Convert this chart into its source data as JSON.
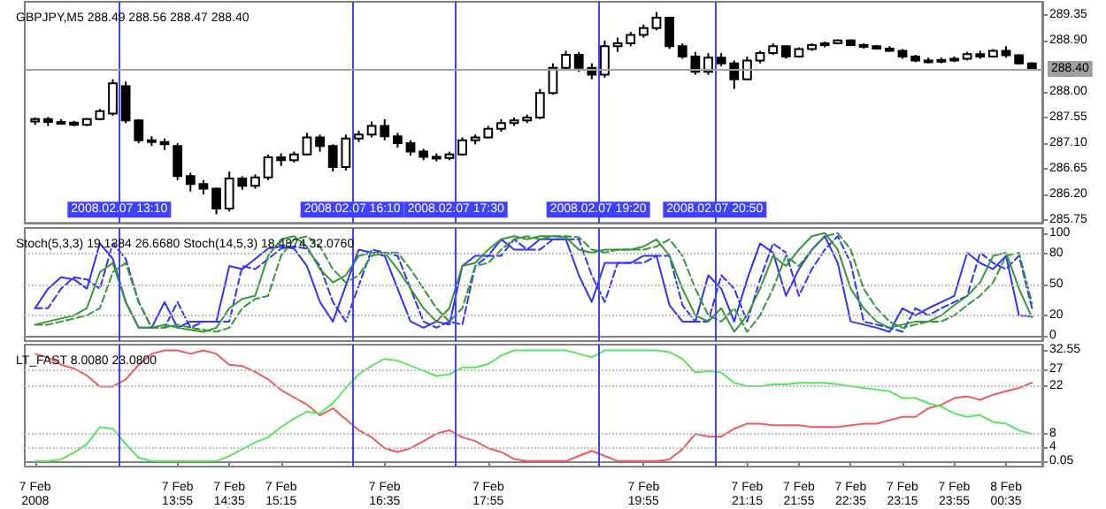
{
  "chart_data": [
    {
      "type": "candlestick",
      "title": "GBPJPY,M5 288.49 288.56 288.47 288.40",
      "color": "#000000",
      "x": [
        "2008-02-07T12:05",
        "2008-02-07T12:15",
        "2008-02-07T12:25",
        "2008-02-07T12:35",
        "2008-02-07T12:45",
        "2008-02-07T12:55",
        "2008-02-07T13:05",
        "2008-02-07T13:15",
        "2008-02-07T13:25",
        "2008-02-07T13:35",
        "2008-02-07T13:45",
        "2008-02-07T13:55",
        "2008-02-07T14:05",
        "2008-02-07T14:15",
        "2008-02-07T14:25",
        "2008-02-07T14:35",
        "2008-02-07T14:45",
        "2008-02-07T14:55",
        "2008-02-07T15:05",
        "2008-02-07T15:15",
        "2008-02-07T15:25",
        "2008-02-07T15:35",
        "2008-02-07T15:45",
        "2008-02-07T15:55",
        "2008-02-07T16:05",
        "2008-02-07T16:15",
        "2008-02-07T16:25",
        "2008-02-07T16:35",
        "2008-02-07T16:45",
        "2008-02-07T16:55",
        "2008-02-07T17:05",
        "2008-02-07T17:15",
        "2008-02-07T17:25",
        "2008-02-07T17:35",
        "2008-02-07T17:45",
        "2008-02-07T17:55",
        "2008-02-07T18:05",
        "2008-02-07T18:15",
        "2008-02-07T18:25",
        "2008-02-07T18:35",
        "2008-02-07T18:45",
        "2008-02-07T18:55",
        "2008-02-07T19:05",
        "2008-02-07T19:15",
        "2008-02-07T19:25",
        "2008-02-07T19:35",
        "2008-02-07T19:45",
        "2008-02-07T19:55",
        "2008-02-07T20:05",
        "2008-02-07T20:15",
        "2008-02-07T20:25",
        "2008-02-07T20:35",
        "2008-02-07T20:45",
        "2008-02-07T20:55",
        "2008-02-07T21:05",
        "2008-02-07T21:15",
        "2008-02-07T21:25",
        "2008-02-07T21:35",
        "2008-02-07T21:45",
        "2008-02-07T21:55",
        "2008-02-07T22:05",
        "2008-02-07T22:15",
        "2008-02-07T22:25",
        "2008-02-07T22:35",
        "2008-02-07T22:45",
        "2008-02-07T22:55",
        "2008-02-07T23:05",
        "2008-02-07T23:15",
        "2008-02-07T23:25",
        "2008-02-07T23:35",
        "2008-02-07T23:45",
        "2008-02-07T23:55",
        "2008-02-08T00:05",
        "2008-02-08T00:15",
        "2008-02-08T00:25",
        "2008-02-08T00:35",
        "2008-02-08T00:45",
        "2008-02-08T00:55"
      ],
      "ohlc": [
        [
          287.48,
          287.55,
          287.42,
          287.52
        ],
        [
          287.52,
          287.56,
          287.4,
          287.47
        ],
        [
          287.47,
          287.52,
          287.43,
          287.46
        ],
        [
          287.46,
          287.49,
          287.4,
          287.42
        ],
        [
          287.42,
          287.54,
          287.4,
          287.52
        ],
        [
          287.52,
          287.7,
          287.5,
          287.66
        ],
        [
          287.62,
          288.22,
          287.58,
          288.15
        ],
        [
          288.1,
          288.18,
          287.45,
          287.5
        ],
        [
          287.5,
          287.52,
          287.1,
          287.15
        ],
        [
          287.15,
          287.22,
          287.05,
          287.12
        ],
        [
          287.12,
          287.18,
          286.98,
          287.08
        ],
        [
          287.05,
          287.1,
          286.45,
          286.52
        ],
        [
          286.52,
          286.58,
          286.25,
          286.38
        ],
        [
          286.38,
          286.45,
          286.2,
          286.3
        ],
        [
          286.3,
          286.32,
          285.85,
          285.95
        ],
        [
          285.95,
          286.6,
          285.9,
          286.48
        ],
        [
          286.48,
          286.52,
          286.28,
          286.35
        ],
        [
          286.35,
          286.55,
          286.3,
          286.5
        ],
        [
          286.5,
          286.9,
          286.45,
          286.85
        ],
        [
          286.85,
          286.92,
          286.7,
          286.8
        ],
        [
          286.8,
          286.95,
          286.76,
          286.9
        ],
        [
          286.9,
          287.28,
          286.88,
          287.2
        ],
        [
          287.2,
          287.25,
          286.95,
          287.05
        ],
        [
          287.05,
          287.08,
          286.6,
          286.68
        ],
        [
          286.68,
          287.25,
          286.62,
          287.18
        ],
        [
          287.18,
          287.32,
          287.12,
          287.25
        ],
        [
          287.25,
          287.48,
          287.2,
          287.4
        ],
        [
          287.4,
          287.52,
          287.15,
          287.22
        ],
        [
          287.22,
          287.28,
          287.02,
          287.1
        ],
        [
          287.1,
          287.15,
          286.88,
          286.95
        ],
        [
          286.95,
          287,
          286.8,
          286.86
        ],
        [
          286.86,
          286.92,
          286.78,
          286.84
        ],
        [
          286.84,
          286.95,
          286.8,
          286.9
        ],
        [
          286.9,
          287.2,
          286.88,
          287.15
        ],
        [
          287.15,
          287.25,
          287.08,
          287.2
        ],
        [
          287.2,
          287.4,
          287.18,
          287.35
        ],
        [
          287.35,
          287.52,
          287.3,
          287.45
        ],
        [
          287.45,
          287.55,
          287.4,
          287.5
        ],
        [
          287.5,
          287.6,
          287.45,
          287.55
        ],
        [
          287.55,
          288.05,
          287.52,
          287.98
        ],
        [
          287.98,
          288.5,
          287.95,
          288.42
        ],
        [
          288.42,
          288.72,
          288.38,
          288.65
        ],
        [
          288.65,
          288.7,
          288.35,
          288.42
        ],
        [
          288.42,
          288.5,
          288.22,
          288.3
        ],
        [
          288.3,
          288.9,
          288.25,
          288.8
        ],
        [
          288.8,
          288.95,
          288.7,
          288.85
        ],
        [
          288.85,
          289.05,
          288.8,
          289
        ],
        [
          289,
          289.18,
          288.95,
          289.12
        ],
        [
          289.12,
          289.4,
          289.08,
          289.3
        ],
        [
          289.3,
          289.32,
          288.75,
          288.8
        ],
        [
          288.8,
          288.85,
          288.58,
          288.62
        ],
        [
          288.62,
          288.7,
          288.3,
          288.35
        ],
        [
          288.35,
          288.68,
          288.3,
          288.6
        ],
        [
          288.6,
          288.68,
          288.45,
          288.5
        ],
        [
          288.5,
          288.55,
          288.05,
          288.22
        ],
        [
          288.22,
          288.62,
          288.2,
          288.55
        ],
        [
          288.55,
          288.72,
          288.5,
          288.68
        ],
        [
          288.68,
          288.85,
          288.65,
          288.8
        ],
        [
          288.8,
          288.82,
          288.58,
          288.62
        ],
        [
          288.62,
          288.78,
          288.6,
          288.75
        ],
        [
          288.75,
          288.85,
          288.72,
          288.82
        ],
        [
          288.82,
          288.88,
          288.78,
          288.85
        ],
        [
          288.85,
          288.92,
          288.83,
          288.9
        ],
        [
          288.9,
          288.92,
          288.8,
          288.82
        ],
        [
          288.82,
          288.85,
          288.76,
          288.8
        ],
        [
          288.8,
          288.82,
          288.74,
          288.76
        ],
        [
          288.76,
          288.8,
          288.7,
          288.72
        ],
        [
          288.72,
          288.75,
          288.58,
          288.62
        ],
        [
          288.62,
          288.65,
          288.52,
          288.55
        ],
        [
          288.55,
          288.6,
          288.5,
          288.54
        ],
        [
          288.54,
          288.6,
          288.5,
          288.56
        ],
        [
          288.56,
          288.62,
          288.52,
          288.58
        ],
        [
          288.58,
          288.7,
          288.55,
          288.66
        ],
        [
          288.66,
          288.72,
          288.58,
          288.62
        ],
        [
          288.62,
          288.75,
          288.6,
          288.72
        ],
        [
          288.72,
          288.8,
          288.6,
          288.64
        ],
        [
          288.64,
          288.66,
          288.48,
          288.5
        ],
        [
          288.5,
          288.52,
          288.4,
          288.4
        ]
      ],
      "xlim": [
        "2008-02-07T11:57",
        "2008-02-08T01:03"
      ],
      "ylim": [
        285.7,
        289.58
      ],
      "yticks": [
        {
          "value": 285.75,
          "label": "285.75"
        },
        {
          "value": 286.2,
          "label": "286.20"
        },
        {
          "value": 286.65,
          "label": "286.65"
        },
        {
          "value": 287.1,
          "label": "287.10"
        },
        {
          "value": 287.55,
          "label": "287.55"
        },
        {
          "value": 288,
          "label": "288.00"
        },
        {
          "value": 288.9,
          "label": "288.90"
        },
        {
          "value": 289.35,
          "label": "289.35"
        }
      ],
      "tick_labels": "y",
      "ref_lines": [
        {
          "axis": "x",
          "value": "2008-02-07T13:10",
          "label": "2008.02.07 13:10",
          "color": "#4040ff"
        },
        {
          "axis": "x",
          "value": "2008-02-07T16:10",
          "label": "2008.02.07 16:10",
          "color": "#4040ff"
        },
        {
          "axis": "x",
          "value": "2008-02-07T17:30",
          "label": "2008.02.07 17:30",
          "color": "#4040ff"
        },
        {
          "axis": "x",
          "value": "2008-02-07T19:20",
          "label": "2008.02.07 19:20",
          "color": "#4040ff"
        },
        {
          "axis": "x",
          "value": "2008-02-07T20:50",
          "label": "2008.02.07 20:50",
          "color": "#4040ff"
        },
        {
          "axis": "y",
          "value": 288.4,
          "label": "288.40",
          "color": "#a0a0a0"
        }
      ]
    },
    {
      "type": "line",
      "title": "Stoch(5,3,3) 19.1384 26.6680 Stoch(14,5,3) 18.4874 32.0760",
      "x": [
        "2008-02-07T12:05",
        "2008-02-07T12:15",
        "2008-02-07T12:25",
        "2008-02-07T12:35",
        "2008-02-07T12:45",
        "2008-02-07T12:55",
        "2008-02-07T13:05",
        "2008-02-07T13:15",
        "2008-02-07T13:25",
        "2008-02-07T13:35",
        "2008-02-07T13:45",
        "2008-02-07T13:55",
        "2008-02-07T14:05",
        "2008-02-07T14:15",
        "2008-02-07T14:25",
        "2008-02-07T14:35",
        "2008-02-07T14:45",
        "2008-02-07T14:55",
        "2008-02-07T15:05",
        "2008-02-07T15:15",
        "2008-02-07T15:25",
        "2008-02-07T15:35",
        "2008-02-07T15:45",
        "2008-02-07T15:55",
        "2008-02-07T16:05",
        "2008-02-07T16:15",
        "2008-02-07T16:25",
        "2008-02-07T16:35",
        "2008-02-07T16:45",
        "2008-02-07T16:55",
        "2008-02-07T17:05",
        "2008-02-07T17:15",
        "2008-02-07T17:25",
        "2008-02-07T17:35",
        "2008-02-07T17:45",
        "2008-02-07T17:55",
        "2008-02-07T18:05",
        "2008-02-07T18:15",
        "2008-02-07T18:25",
        "2008-02-07T18:35",
        "2008-02-07T18:45",
        "2008-02-07T18:55",
        "2008-02-07T19:05",
        "2008-02-07T19:15",
        "2008-02-07T19:25",
        "2008-02-07T19:35",
        "2008-02-07T19:45",
        "2008-02-07T19:55",
        "2008-02-07T20:05",
        "2008-02-07T20:15",
        "2008-02-07T20:25",
        "2008-02-07T20:35",
        "2008-02-07T20:45",
        "2008-02-07T20:55",
        "2008-02-07T21:05",
        "2008-02-07T21:15",
        "2008-02-07T21:25",
        "2008-02-07T21:35",
        "2008-02-07T21:45",
        "2008-02-07T21:55",
        "2008-02-07T22:05",
        "2008-02-07T22:15",
        "2008-02-07T22:25",
        "2008-02-07T22:35",
        "2008-02-07T22:45",
        "2008-02-07T22:55",
        "2008-02-07T23:05",
        "2008-02-07T23:15",
        "2008-02-07T23:25",
        "2008-02-07T23:35",
        "2008-02-07T23:45",
        "2008-02-07T23:55",
        "2008-02-08T00:05",
        "2008-02-08T00:15",
        "2008-02-08T00:25",
        "2008-02-08T00:35",
        "2008-02-08T00:45",
        "2008-02-08T00:55"
      ],
      "series": [
        {
          "color": "#3030ff",
          "values": [
            27,
            46,
            57,
            55,
            46,
            90,
            75,
            33,
            8,
            8,
            33,
            8,
            14,
            14,
            14,
            68,
            65,
            75,
            85,
            87,
            85,
            68,
            33,
            14,
            49,
            84,
            81,
            78,
            46,
            14,
            8,
            14,
            11,
            68,
            78,
            78,
            94,
            84,
            84,
            94,
            94,
            94,
            59,
            33,
            71,
            71,
            71,
            78,
            78,
            30,
            14,
            14,
            59,
            46,
            14,
            55,
            90,
            81,
            39,
            65,
            84,
            97,
            71,
            14,
            11,
            8,
            4,
            27,
            20,
            27,
            33,
            39,
            81,
            71,
            65,
            78,
            20,
            19
          ]
        },
        {
          "color": "#3030ff",
          "line_style": "dashed",
          "values": [
            27,
            27,
            46,
            57,
            55,
            46,
            90,
            75,
            33,
            8,
            8,
            33,
            8,
            14,
            14,
            14,
            68,
            65,
            75,
            85,
            87,
            85,
            68,
            33,
            14,
            49,
            84,
            81,
            78,
            46,
            14,
            8,
            14,
            11,
            68,
            78,
            78,
            94,
            84,
            84,
            94,
            94,
            94,
            59,
            33,
            71,
            71,
            71,
            78,
            78,
            30,
            14,
            14,
            59,
            46,
            14,
            55,
            90,
            81,
            39,
            65,
            84,
            97,
            71,
            14,
            11,
            8,
            4,
            27,
            20,
            27,
            33,
            39,
            81,
            71,
            65,
            78,
            27
          ]
        },
        {
          "color": "#339933",
          "values": [
            11,
            14,
            17,
            20,
            27,
            62,
            71,
            33,
            8,
            8,
            11,
            8,
            6,
            4,
            8,
            27,
            36,
            39,
            78,
            94,
            97,
            87,
            65,
            52,
            59,
            78,
            81,
            81,
            65,
            46,
            27,
            14,
            27,
            68,
            71,
            84,
            94,
            97,
            94,
            97,
            97,
            96,
            84,
            81,
            84,
            84,
            84,
            87,
            94,
            78,
            46,
            20,
            14,
            27,
            4,
            20,
            46,
            78,
            68,
            84,
            97,
            100,
            84,
            46,
            27,
            14,
            8,
            11,
            14,
            14,
            20,
            30,
            39,
            52,
            78,
            81,
            46,
            18
          ]
        },
        {
          "color": "#339933",
          "line_style": "dashed",
          "values": [
            11,
            11,
            14,
            17,
            20,
            27,
            62,
            71,
            33,
            8,
            8,
            11,
            8,
            6,
            4,
            8,
            27,
            36,
            39,
            78,
            94,
            97,
            87,
            65,
            52,
            59,
            78,
            81,
            81,
            65,
            46,
            27,
            14,
            27,
            68,
            71,
            84,
            94,
            97,
            94,
            97,
            97,
            96,
            84,
            81,
            84,
            84,
            84,
            87,
            94,
            78,
            46,
            20,
            14,
            27,
            4,
            20,
            46,
            78,
            68,
            84,
            97,
            100,
            84,
            46,
            27,
            14,
            8,
            11,
            14,
            14,
            20,
            30,
            39,
            52,
            78,
            81,
            32
          ]
        }
      ],
      "xlim": [
        "2008-02-07T11:57",
        "2008-02-08T01:03"
      ],
      "ylim": [
        -5,
        105
      ],
      "yticks": [
        0,
        20,
        50,
        80,
        100
      ],
      "tick_labels": "y",
      "ref_lines": [
        {
          "axis": "y",
          "value": 20,
          "color": "#c0c0c0",
          "line_style": "dotted"
        },
        {
          "axis": "y",
          "value": 50,
          "color": "#c0c0c0",
          "line_style": "dotted"
        },
        {
          "axis": "y",
          "value": 80,
          "color": "#c0c0c0",
          "line_style": "dotted"
        },
        {
          "axis": "x",
          "value": "2008-02-07T13:10",
          "color": "#4040ff"
        },
        {
          "axis": "x",
          "value": "2008-02-07T16:10",
          "color": "#4040ff"
        },
        {
          "axis": "x",
          "value": "2008-02-07T17:30",
          "color": "#4040ff"
        },
        {
          "axis": "x",
          "value": "2008-02-07T19:20",
          "color": "#4040ff"
        },
        {
          "axis": "x",
          "value": "2008-02-07T20:50",
          "color": "#4040ff"
        }
      ]
    },
    {
      "type": "line",
      "title": "LT_FAST 8.0080 23.0800",
      "x": [
        "2008-02-07T12:05",
        "2008-02-07T12:15",
        "2008-02-07T12:25",
        "2008-02-07T12:35",
        "2008-02-07T12:45",
        "2008-02-07T12:55",
        "2008-02-07T13:05",
        "2008-02-07T13:15",
        "2008-02-07T13:25",
        "2008-02-07T13:35",
        "2008-02-07T13:45",
        "2008-02-07T13:55",
        "2008-02-07T14:05",
        "2008-02-07T14:15",
        "2008-02-07T14:25",
        "2008-02-07T14:35",
        "2008-02-07T14:45",
        "2008-02-07T14:55",
        "2008-02-07T15:05",
        "2008-02-07T15:15",
        "2008-02-07T15:25",
        "2008-02-07T15:35",
        "2008-02-07T15:45",
        "2008-02-07T15:55",
        "2008-02-07T16:05",
        "2008-02-07T16:15",
        "2008-02-07T16:25",
        "2008-02-07T16:35",
        "2008-02-07T16:45",
        "2008-02-07T16:55",
        "2008-02-07T17:05",
        "2008-02-07T17:15",
        "2008-02-07T17:25",
        "2008-02-07T17:35",
        "2008-02-07T17:45",
        "2008-02-07T17:55",
        "2008-02-07T18:05",
        "2008-02-07T18:15",
        "2008-02-07T18:25",
        "2008-02-07T18:35",
        "2008-02-07T18:45",
        "2008-02-07T18:55",
        "2008-02-07T19:05",
        "2008-02-07T19:15",
        "2008-02-07T19:25",
        "2008-02-07T19:35",
        "2008-02-07T19:45",
        "2008-02-07T19:55",
        "2008-02-07T20:05",
        "2008-02-07T20:15",
        "2008-02-07T20:25",
        "2008-02-07T20:35",
        "2008-02-07T20:45",
        "2008-02-07T20:55",
        "2008-02-07T21:05",
        "2008-02-07T21:15",
        "2008-02-07T21:25",
        "2008-02-07T21:35",
        "2008-02-07T21:45",
        "2008-02-07T21:55",
        "2008-02-07T22:05",
        "2008-02-07T22:15",
        "2008-02-07T22:25",
        "2008-02-07T22:35",
        "2008-02-07T22:45",
        "2008-02-07T22:55",
        "2008-02-07T23:05",
        "2008-02-07T23:15",
        "2008-02-07T23:25",
        "2008-02-07T23:35",
        "2008-02-07T23:45",
        "2008-02-07T23:55",
        "2008-02-08T00:05",
        "2008-02-08T00:15",
        "2008-02-08T00:25",
        "2008-02-08T00:35",
        "2008-02-08T00:45",
        "2008-02-08T00:55"
      ],
      "series": [
        {
          "color": "#f05a5a",
          "values": [
            31.5,
            30.4,
            28.3,
            27.2,
            25.1,
            21.9,
            21.9,
            24,
            28.3,
            31.5,
            32.5,
            32.5,
            31.5,
            32.5,
            31.5,
            28.3,
            27.9,
            26.2,
            24,
            20.9,
            18.7,
            16.6,
            13.4,
            15.5,
            12.3,
            9.1,
            7,
            3.8,
            2.7,
            3.8,
            5.9,
            8,
            9.1,
            7,
            5.9,
            3.8,
            2.7,
            0.6,
            0,
            0,
            0,
            0,
            1.5,
            3,
            1.5,
            0,
            0,
            0,
            0,
            0.5,
            3.5,
            8,
            7.2,
            7.2,
            9.5,
            11,
            11,
            10.5,
            10.5,
            10.5,
            10,
            10,
            10,
            10.5,
            11,
            11,
            12,
            13,
            13,
            15.5,
            16.5,
            18.5,
            19,
            18,
            19.5,
            20.5,
            21.5,
            23
          ]
        },
        {
          "color": "#5ae65a",
          "values": [
            0,
            0,
            0.5,
            2.5,
            5,
            10,
            9.5,
            5,
            1,
            0,
            0,
            0,
            0,
            0,
            0,
            1.5,
            3.5,
            5.5,
            7,
            10,
            12.5,
            14.5,
            14,
            17,
            21.5,
            25.5,
            28,
            30,
            29.5,
            28,
            26.5,
            25,
            25.5,
            27.5,
            27.5,
            28.5,
            31,
            32.5,
            32.5,
            32.5,
            32.5,
            32.5,
            31.5,
            30.5,
            32.5,
            32.5,
            32.5,
            32.5,
            32.5,
            32,
            30,
            26,
            26.5,
            26,
            23,
            22,
            22,
            22.5,
            22.5,
            23,
            23,
            23,
            22.5,
            22,
            21.5,
            21,
            20.5,
            18.5,
            18.5,
            17,
            16,
            14,
            13,
            13.5,
            11.5,
            11,
            9,
            8
          ]
        }
      ],
      "xlim": [
        "2008-02-07T11:57",
        "2008-02-08T01:03"
      ],
      "ylim": [
        -1.6,
        34.2
      ],
      "yticks": [
        0.05,
        4,
        8,
        22,
        27,
        32.55
      ],
      "xticks": [
        {
          "value": "2008-02-07T12:05",
          "label": "7 Feb 2008"
        },
        {
          "value": "2008-02-07T13:55",
          "label": "7 Feb 13:55"
        },
        {
          "value": "2008-02-07T14:35",
          "label": "7 Feb 14:35"
        },
        {
          "value": "2008-02-07T15:15",
          "label": "7 Feb 15:15"
        },
        {
          "value": "2008-02-07T16:35",
          "label": "7 Feb 16:35"
        },
        {
          "value": "2008-02-07T17:55",
          "label": "7 Feb 17:55"
        },
        {
          "value": "2008-02-07T19:55",
          "label": "7 Feb 19:55"
        },
        {
          "value": "2008-02-07T21:15",
          "label": "7 Feb 21:15"
        },
        {
          "value": "2008-02-07T21:55",
          "label": "7 Feb 21:55"
        },
        {
          "value": "2008-02-07T22:35",
          "label": "7 Feb 22:35"
        },
        {
          "value": "2008-02-07T23:15",
          "label": "7 Feb 23:15"
        },
        {
          "value": "2008-02-07T23:55",
          "label": "7 Feb 23:55"
        },
        {
          "value": "2008-02-08T00:35",
          "label": "8 Feb 00:35"
        }
      ],
      "ref_lines": [
        {
          "axis": "y",
          "value": 4,
          "color": "#c0c0c0",
          "line_style": "dotted"
        },
        {
          "axis": "y",
          "value": 8,
          "color": "#c0c0c0",
          "line_style": "dotted"
        },
        {
          "axis": "y",
          "value": 22,
          "color": "#c0c0c0",
          "line_style": "dotted"
        },
        {
          "axis": "y",
          "value": 27,
          "color": "#c0c0c0",
          "line_style": "dotted"
        },
        {
          "axis": "x",
          "value": "2008-02-07T13:10",
          "color": "#4040ff"
        },
        {
          "axis": "x",
          "value": "2008-02-07T16:10",
          "color": "#4040ff"
        },
        {
          "axis": "x",
          "value": "2008-02-07T17:30",
          "color": "#4040ff"
        },
        {
          "axis": "x",
          "value": "2008-02-07T19:20",
          "color": "#4040ff"
        },
        {
          "axis": "x",
          "value": "2008-02-07T20:50",
          "color": "#4040ff"
        }
      ]
    }
  ]
}
